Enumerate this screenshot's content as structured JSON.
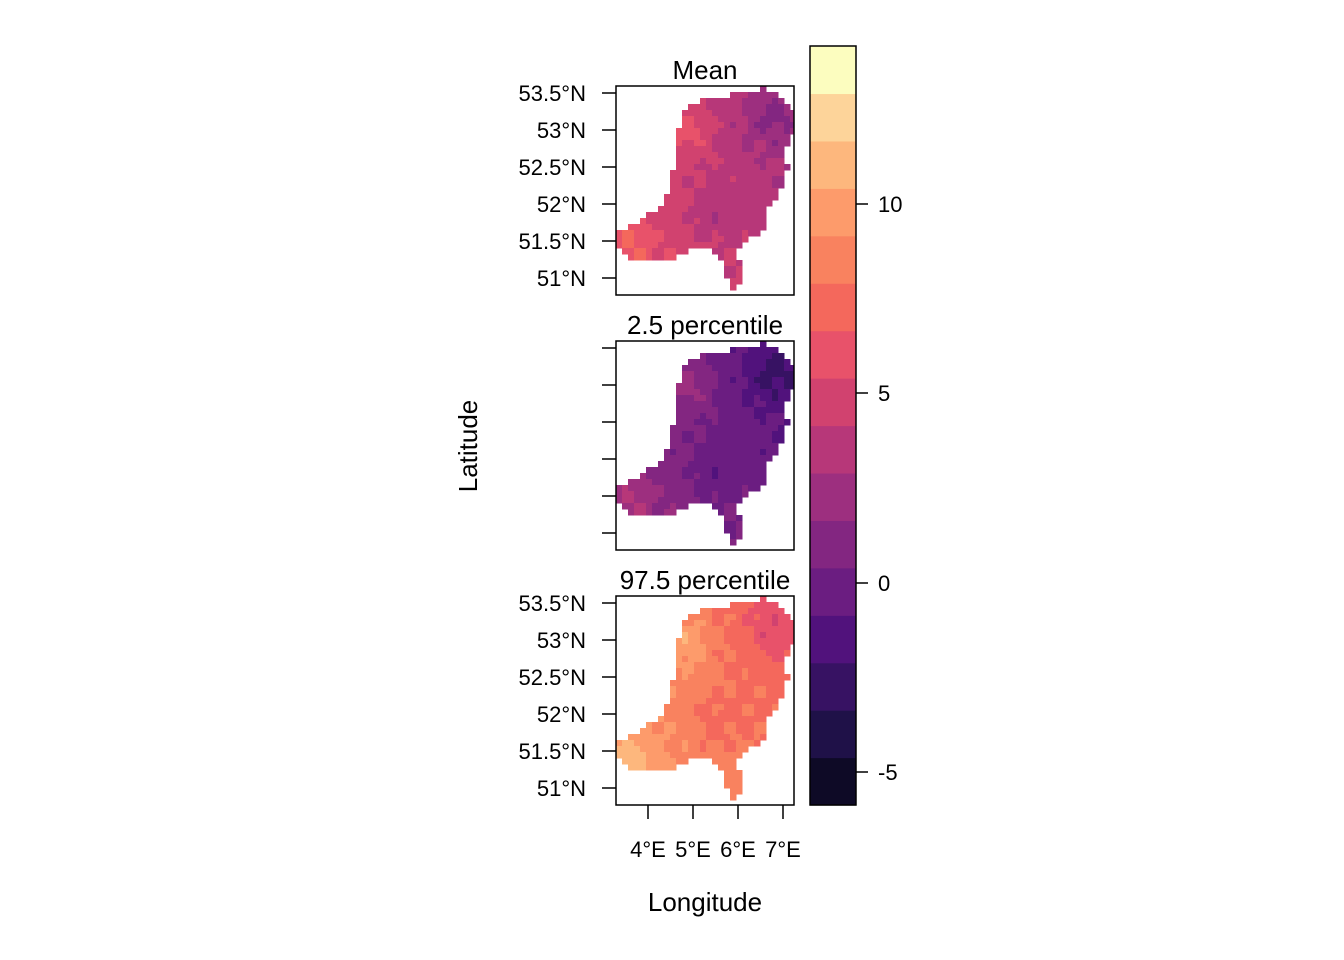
{
  "figure": {
    "xlabel": "Longitude",
    "ylabel": "Latitude"
  },
  "panels": [
    {
      "title": "Mean",
      "shade": 0.0
    },
    {
      "title": "2.5 percentile",
      "shade": -3.8
    },
    {
      "title": "97.5 percentile",
      "shade": 4.2
    }
  ],
  "lat_ticks": [
    "53.5°N",
    "53°N",
    "52.5°N",
    "52°N",
    "51.5°N",
    "51°N"
  ],
  "lon_ticks": [
    "4°E",
    "5°E",
    "6°E",
    "7°E"
  ],
  "colorbar": {
    "ticks": [
      "10",
      "5",
      "0",
      "-5"
    ],
    "tick_values": [
      10,
      5,
      0,
      -5
    ],
    "range": [
      -6,
      14
    ],
    "colors": [
      "#000004",
      "#0e0a26",
      "#1f1148",
      "#371263",
      "#51127c",
      "#6b1d81",
      "#832681",
      "#9d2f7f",
      "#b73779",
      "#d1426f",
      "#e8526a",
      "#f4685c",
      "#f9825f",
      "#fd9b6b",
      "#fdb77d",
      "#fdd49a",
      "#fcfdbf"
    ]
  },
  "chart_data": {
    "type": "heatmap",
    "title": "",
    "panels": [
      "Mean",
      "2.5 percentile",
      "97.5 percentile"
    ],
    "xlabel": "Longitude",
    "ylabel": "Latitude",
    "xlim": [
      3.3,
      7.25
    ],
    "ylim": [
      50.75,
      53.57
    ],
    "x_ticks": [
      4,
      5,
      6,
      7
    ],
    "y_ticks": [
      53.5,
      53,
      52.5,
      52,
      51.5,
      51
    ],
    "colorbar_range": [
      -6,
      14
    ],
    "colorbar_ticks": [
      10,
      5,
      0,
      -5
    ],
    "panel_typical_values": {
      "Mean": [
        1,
        6
      ],
      "2.5 percentile": [
        -3,
        2
      ],
      "97.5 percentile": [
        5,
        13
      ]
    }
  }
}
